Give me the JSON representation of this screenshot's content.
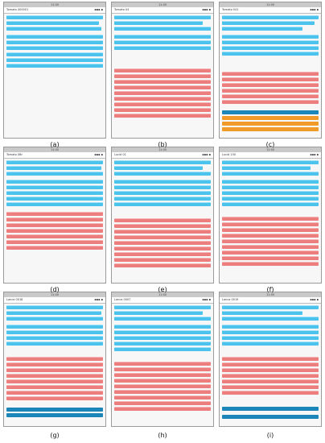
{
  "panels": [
    {
      "id": "a",
      "clock": "11:00",
      "name": "Tomato 400001",
      "caption": "(a)"
    },
    {
      "id": "b",
      "clock": "11:00",
      "name": "Tomato 04",
      "caption": "(b)"
    },
    {
      "id": "c",
      "clock": "11:00",
      "name": "Tomato 041",
      "caption": "(c)"
    },
    {
      "id": "d",
      "clock": "11:00",
      "name": "Tomato 0Br",
      "caption": "(d)"
    },
    {
      "id": "e",
      "clock": "11:00",
      "name": "Lucid 01",
      "caption": "(e)"
    },
    {
      "id": "f",
      "clock": "11:00",
      "name": "Lucid 150",
      "caption": "(f)"
    },
    {
      "id": "g",
      "clock": "11:00",
      "name": "Lanca 0018",
      "caption": "(g)"
    },
    {
      "id": "h",
      "clock": "11:00",
      "name": "Lanca 0007",
      "caption": "(h)"
    },
    {
      "id": "i",
      "clock": "11:00",
      "name": "Lanca 0019",
      "caption": "(i)"
    }
  ],
  "colors": {
    "cyan": "#4cc3ec",
    "red": "#ec7e7e",
    "blue": "#1c86b8",
    "orange": "#f09a2a"
  }
}
